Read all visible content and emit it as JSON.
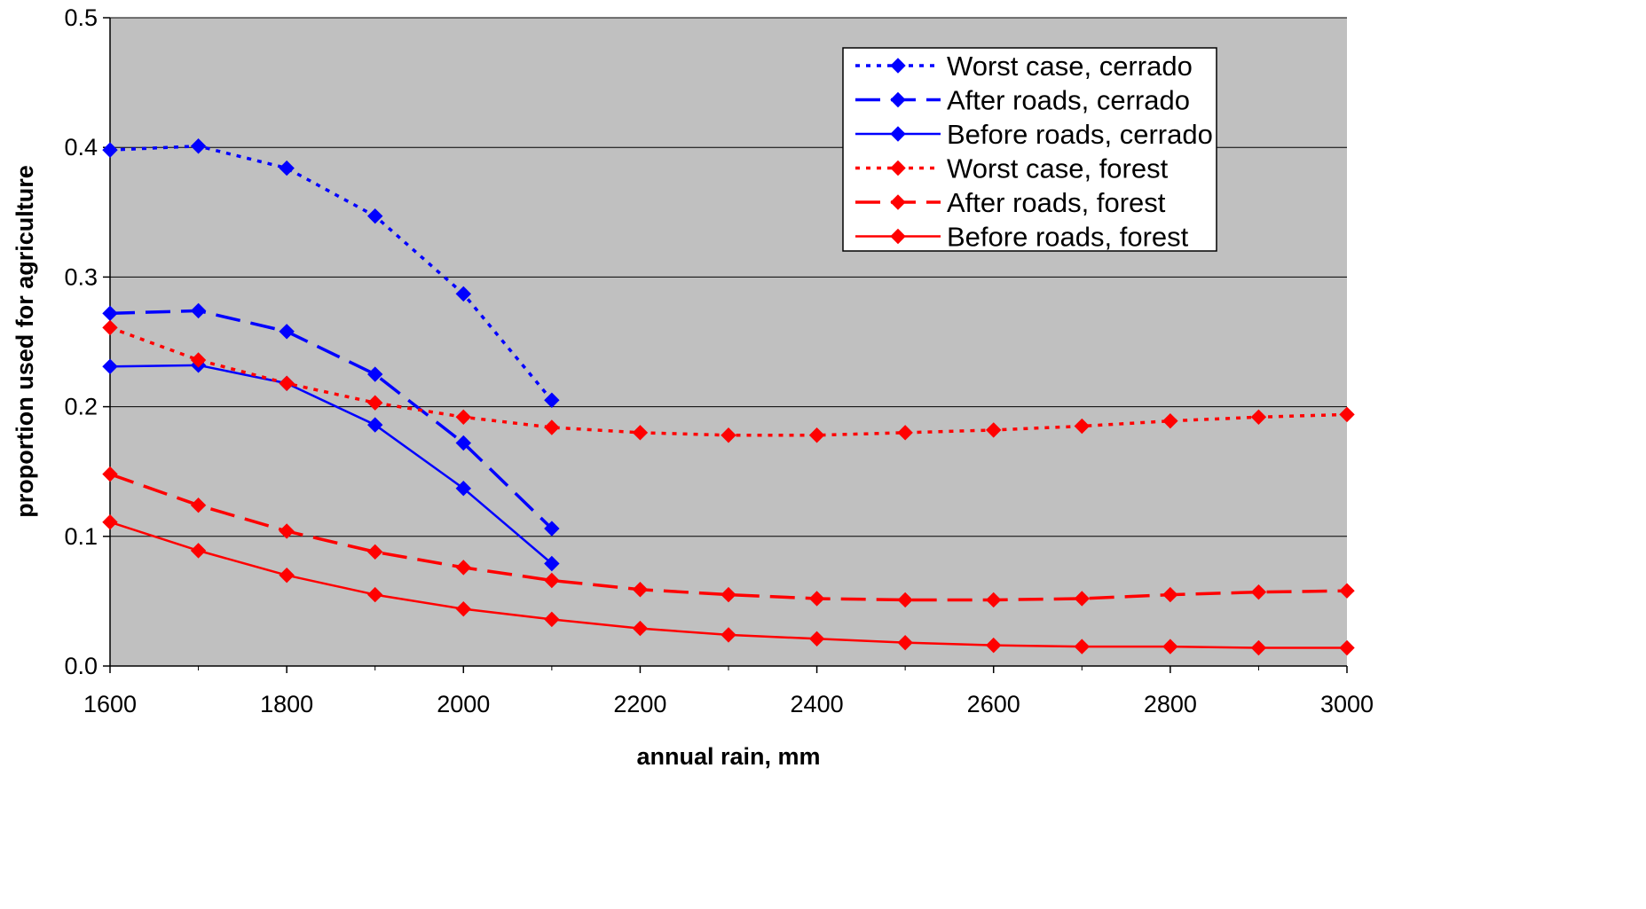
{
  "chart_data": {
    "type": "line",
    "title": "",
    "xlabel": "annual rain, mm",
    "ylabel": "proportion used for agriculture",
    "xlim": [
      1600,
      3000
    ],
    "ylim": [
      0,
      0.5
    ],
    "x_ticks": [
      1600,
      1800,
      2000,
      2200,
      2400,
      2600,
      2800,
      3000
    ],
    "y_ticks": [
      0.0,
      0.1,
      0.2,
      0.3,
      0.4,
      0.5
    ],
    "y_tick_labels": [
      "0.0",
      "0.1",
      "0.2",
      "0.3",
      "0.4",
      "0.5"
    ],
    "grid": "horizontal",
    "plot_background": "#c0c0c0",
    "legend_position": "top-right",
    "series": [
      {
        "name": "Worst case, cerrado",
        "color": "#0000ff",
        "line_style": "dotted",
        "marker": "diamond",
        "x": [
          1600,
          1700,
          1800,
          1900,
          2000,
          2100
        ],
        "values": [
          0.398,
          0.401,
          0.384,
          0.347,
          0.287,
          0.205
        ]
      },
      {
        "name": "After roads, cerrado",
        "color": "#0000ff",
        "line_style": "long-dash",
        "marker": "diamond",
        "x": [
          1600,
          1700,
          1800,
          1900,
          2000,
          2100
        ],
        "values": [
          0.272,
          0.274,
          0.258,
          0.225,
          0.172,
          0.106
        ]
      },
      {
        "name": "Before roads, cerrado",
        "color": "#0000ff",
        "line_style": "solid",
        "marker": "diamond",
        "x": [
          1600,
          1700,
          1800,
          1900,
          2000,
          2100
        ],
        "values": [
          0.231,
          0.232,
          0.218,
          0.186,
          0.137,
          0.079
        ]
      },
      {
        "name": "Worst case, forest",
        "color": "#ff0000",
        "line_style": "dotted",
        "marker": "diamond",
        "x": [
          1600,
          1700,
          1800,
          1900,
          2000,
          2100,
          2200,
          2300,
          2400,
          2500,
          2600,
          2700,
          2800,
          2900,
          3000
        ],
        "values": [
          0.261,
          0.236,
          0.218,
          0.203,
          0.192,
          0.184,
          0.18,
          0.178,
          0.178,
          0.18,
          0.182,
          0.185,
          0.189,
          0.192,
          0.194
        ]
      },
      {
        "name": "After roads, forest",
        "color": "#ff0000",
        "line_style": "long-dash",
        "marker": "diamond",
        "x": [
          1600,
          1700,
          1800,
          1900,
          2000,
          2100,
          2200,
          2300,
          2400,
          2500,
          2600,
          2700,
          2800,
          2900,
          3000
        ],
        "values": [
          0.148,
          0.124,
          0.104,
          0.088,
          0.076,
          0.066,
          0.059,
          0.055,
          0.052,
          0.051,
          0.051,
          0.052,
          0.055,
          0.057,
          0.058
        ]
      },
      {
        "name": "Before roads, forest",
        "color": "#ff0000",
        "line_style": "solid",
        "marker": "diamond",
        "x": [
          1600,
          1700,
          1800,
          1900,
          2000,
          2100,
          2200,
          2300,
          2400,
          2500,
          2600,
          2700,
          2800,
          2900,
          3000
        ],
        "values": [
          0.111,
          0.089,
          0.07,
          0.055,
          0.044,
          0.036,
          0.029,
          0.024,
          0.021,
          0.018,
          0.016,
          0.015,
          0.015,
          0.014,
          0.014
        ]
      }
    ]
  }
}
